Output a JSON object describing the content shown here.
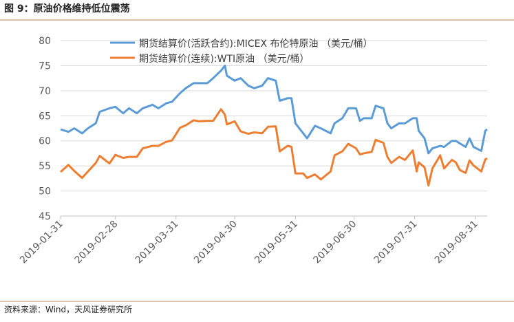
{
  "title": "图 9：原油价格维持低位震荡",
  "source": "资料来源：Wind，天风证券研究所",
  "chart_data": {
    "type": "line",
    "x": [
      "2019-01-31",
      "2019-02-04",
      "2019-02-07",
      "2019-02-11",
      "2019-02-14",
      "2019-02-18",
      "2019-02-20",
      "2019-02-25",
      "2019-02-28",
      "2019-03-04",
      "2019-03-07",
      "2019-03-11",
      "2019-03-14",
      "2019-03-19",
      "2019-03-22",
      "2019-03-26",
      "2019-03-29",
      "2019-04-02",
      "2019-04-05",
      "2019-04-09",
      "2019-04-12",
      "2019-04-16",
      "2019-04-19",
      "2019-04-23",
      "2019-04-25",
      "2019-04-26",
      "2019-04-30",
      "2019-05-03",
      "2019-05-07",
      "2019-05-10",
      "2019-05-14",
      "2019-05-17",
      "2019-05-21",
      "2019-05-23",
      "2019-05-27",
      "2019-05-29",
      "2019-05-31",
      "2019-06-04",
      "2019-06-06",
      "2019-06-10",
      "2019-06-13",
      "2019-06-18",
      "2019-06-20",
      "2019-06-24",
      "2019-06-27",
      "2019-07-01",
      "2019-07-03",
      "2019-07-05",
      "2019-07-09",
      "2019-07-11",
      "2019-07-15",
      "2019-07-17",
      "2019-07-19",
      "2019-07-23",
      "2019-07-26",
      "2019-07-30",
      "2019-08-01",
      "2019-08-02",
      "2019-08-05",
      "2019-08-07",
      "2019-08-09",
      "2019-08-13",
      "2019-08-15",
      "2019-08-19",
      "2019-08-21",
      "2019-08-23",
      "2019-08-26",
      "2019-08-28",
      "2019-08-30",
      "2019-09-03",
      "2019-09-05",
      "2019-09-06"
    ],
    "series": [
      {
        "name": "期货结算价(活跃合约):MICEX 布伦特原油 （美元/桶）",
        "color": "#5b9bd5",
        "values": [
          62.3,
          61.8,
          62.5,
          61.5,
          62.5,
          63.5,
          65.8,
          66.5,
          66.8,
          65.5,
          66.5,
          65.5,
          66.5,
          67.2,
          66.5,
          67.5,
          67.8,
          69.5,
          70.5,
          71.5,
          71.5,
          71.5,
          72.5,
          74.0,
          75.0,
          73.0,
          72.0,
          72.5,
          71.0,
          70.5,
          71.0,
          72.5,
          72.0,
          68.0,
          68.5,
          68.5,
          63.5,
          61.5,
          60.5,
          63.0,
          62.5,
          61.5,
          63.5,
          64.5,
          66.5,
          66.5,
          64.0,
          64.5,
          64.5,
          67.0,
          66.5,
          63.5,
          62.5,
          63.5,
          63.5,
          64.5,
          64.5,
          62.0,
          60.5,
          57.5,
          58.5,
          59.0,
          58.8,
          60.0,
          60.0,
          59.5,
          58.8,
          60.5,
          58.8,
          58.0,
          62.0,
          62.3
        ]
      },
      {
        "name": "期货结算价(连续):WTI原油 （美元/桶）",
        "color": "#ed7d31",
        "values": [
          53.8,
          55.2,
          54.0,
          52.6,
          53.9,
          55.6,
          57.0,
          55.5,
          57.2,
          56.6,
          56.8,
          56.8,
          58.5,
          59.0,
          59.0,
          59.8,
          60.1,
          62.6,
          63.1,
          64.1,
          63.9,
          64.0,
          64.0,
          66.3,
          65.2,
          63.3,
          63.9,
          61.9,
          61.4,
          61.7,
          61.5,
          62.8,
          62.9,
          57.9,
          59.0,
          58.8,
          53.5,
          53.5,
          52.6,
          53.3,
          52.3,
          53.9,
          57.1,
          57.9,
          59.4,
          58.5,
          57.3,
          57.5,
          57.8,
          60.2,
          59.6,
          56.8,
          55.6,
          56.8,
          56.2,
          58.1,
          53.9,
          55.7,
          54.7,
          51.1,
          54.5,
          57.1,
          54.5,
          56.2,
          55.7,
          54.2,
          53.6,
          56.1,
          55.1,
          53.9,
          56.3,
          56.5
        ]
      }
    ],
    "xlim": [
      "2019-01-31",
      "2019-09-06"
    ],
    "xticks": [
      "2019-01-31",
      "2019-02-28",
      "2019-03-31",
      "2019-04-30",
      "2019-05-31",
      "2019-06-30",
      "2019-07-31",
      "2019-08-31"
    ],
    "ylim": [
      45,
      80
    ],
    "yticks": [
      45,
      50,
      55,
      60,
      65,
      70,
      75,
      80
    ],
    "grid": true,
    "legend": "upper-left"
  }
}
